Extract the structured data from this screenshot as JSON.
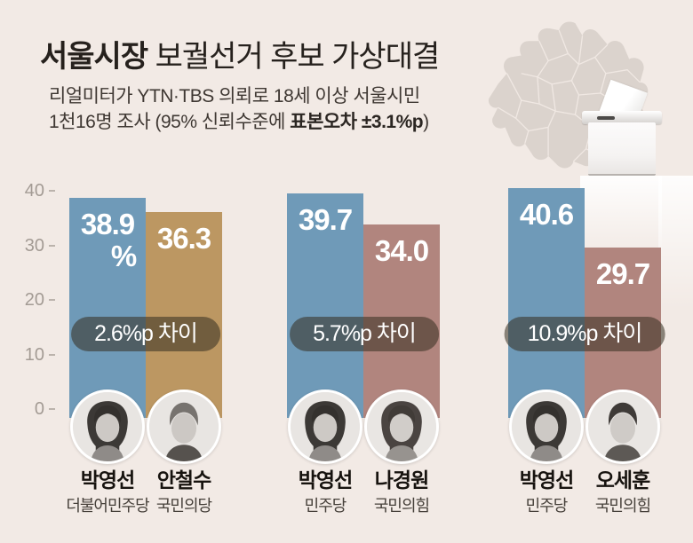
{
  "header": {
    "title": {
      "bold": "서울시장",
      "rest": " 보궐선거 후보 가상대결"
    },
    "subtitle": {
      "line1": "리얼미터가 YTN·TBS 의뢰로 18세 이상 서울시민",
      "line2_pre": "1천16명 조사 (95% 신뢰수준에 ",
      "line2_bold": "표본오차 ±3.1%p",
      "line2_post": ")"
    }
  },
  "chart_data": {
    "type": "bar",
    "title": "서울시장 보궐선거 후보 가상대결",
    "unit": "%p",
    "ylim": [
      0,
      40
    ],
    "yticks": [
      "40",
      "30",
      "20",
      "10",
      "0"
    ],
    "grid": false,
    "groups": [
      {
        "diff": "2.6%p 차이",
        "bars": [
          {
            "name": "박영선",
            "party": "더불어민주당",
            "value": 38.9,
            "label": "38.9",
            "label2": "%",
            "color": "#6f9ab8"
          },
          {
            "name": "안철수",
            "party": "국민의당",
            "value": 36.3,
            "label": "36.3",
            "color": "#bc9762"
          }
        ]
      },
      {
        "diff": "5.7%p 차이",
        "bars": [
          {
            "name": "박영선",
            "party": "민주당",
            "value": 39.7,
            "label": "39.7",
            "color": "#6f9ab8"
          },
          {
            "name": "나경원",
            "party": "국민의힘",
            "value": 34.0,
            "label": "34.0",
            "color": "#b1857e"
          }
        ]
      },
      {
        "diff": "10.9%p 차이",
        "bars": [
          {
            "name": "박영선",
            "party": "민주당",
            "value": 40.6,
            "label": "40.6",
            "color": "#6f9ab8"
          },
          {
            "name": "오세훈",
            "party": "국민의힘",
            "value": 29.7,
            "label": "29.7",
            "color": "#b1857e"
          }
        ]
      }
    ]
  },
  "colors": {
    "background": "#f2eae5",
    "bar_blue": "#6f9ab8",
    "bar_tan": "#bc9762",
    "bar_mauve": "#b1857e",
    "pill_overlay": "rgba(55,48,34,0.56)",
    "map_gray": "#dbd3cd"
  }
}
